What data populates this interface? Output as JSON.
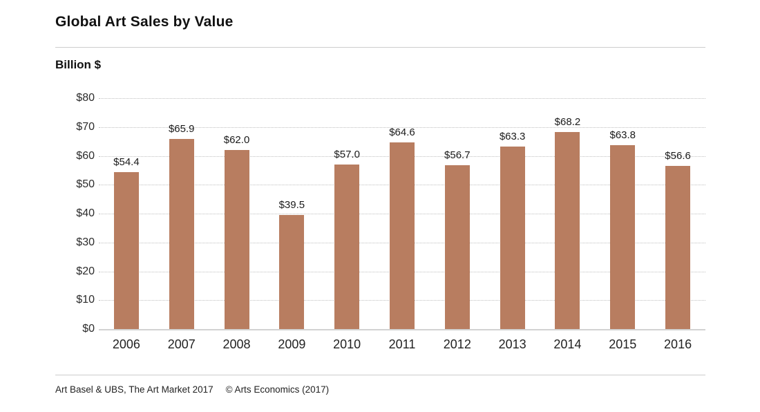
{
  "header": {
    "title": "Global Art Sales by Value",
    "unit_label": "Billion $"
  },
  "footer": {
    "source": "Art Basel & UBS, The Art Market 2017",
    "copyright": "© Arts Economics (2017)"
  },
  "colors": {
    "bar": "#b87d60",
    "grid": "#bfbfbf",
    "baseline": "#d2d2d2",
    "rule": "#cccccc",
    "text": "#1a1a1a"
  },
  "chart_data": {
    "type": "bar",
    "title": "Global Art Sales by Value",
    "xlabel": "",
    "ylabel": "Billion $",
    "categories": [
      "2006",
      "2007",
      "2008",
      "2009",
      "2010",
      "2011",
      "2012",
      "2013",
      "2014",
      "2015",
      "2016"
    ],
    "values": [
      54.4,
      65.9,
      62.0,
      39.5,
      57.0,
      64.6,
      56.7,
      63.3,
      68.2,
      63.8,
      56.6
    ],
    "value_labels": [
      "$54.4",
      "$65.9",
      "$62.0",
      "$39.5",
      "$57.0",
      "$64.6",
      "$56.7",
      "$63.3",
      "$68.2",
      "$63.8",
      "$56.6"
    ],
    "ylim": [
      0,
      80
    ],
    "ytick_step": 10,
    "ytick_labels": [
      "$0",
      "$10",
      "$20",
      "$30",
      "$40",
      "$50",
      "$60",
      "$70",
      "$80"
    ],
    "grid": "horizontal-dotted",
    "legend": "none",
    "bar_color": "#b87d60"
  }
}
